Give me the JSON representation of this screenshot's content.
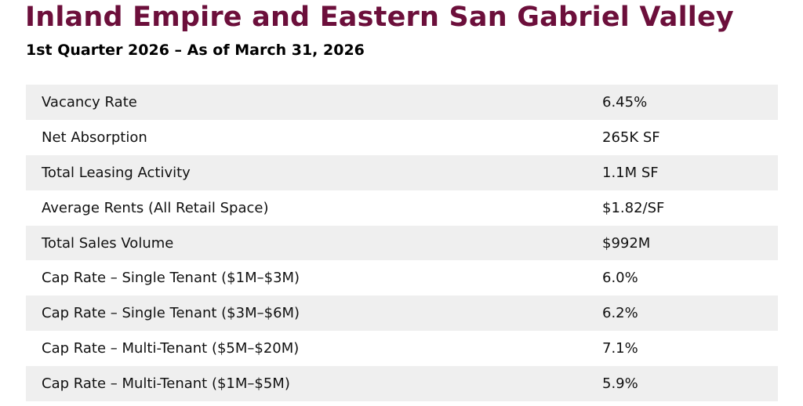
{
  "header": {
    "title": "Inland Empire and Eastern San Gabriel Valley",
    "subtitle": "1st Quarter 2026 – As of March 31, 2026"
  },
  "colors": {
    "title": "#6C0F3B",
    "row_alt": "#EFEFEF",
    "text": "#111111"
  },
  "table": {
    "rows": [
      {
        "label": "Vacancy Rate",
        "value": "6.45%"
      },
      {
        "label": "Net Absorption",
        "value": "265K SF"
      },
      {
        "label": "Total Leasing Activity",
        "value": "1.1M SF"
      },
      {
        "label": "Average Rents (All Retail Space)",
        "value": "$1.82/SF"
      },
      {
        "label": "Total Sales Volume",
        "value": "$992M"
      },
      {
        "label": "Cap Rate – Single Tenant ($1M–$3M)",
        "value": "6.0%"
      },
      {
        "label": "Cap Rate – Single Tenant ($3M–$6M)",
        "value": "6.2%"
      },
      {
        "label": "Cap Rate – Multi-Tenant ($5M–$20M)",
        "value": "7.1%"
      },
      {
        "label": "Cap Rate – Multi-Tenant ($1M–$5M)",
        "value": "5.9%"
      }
    ]
  }
}
